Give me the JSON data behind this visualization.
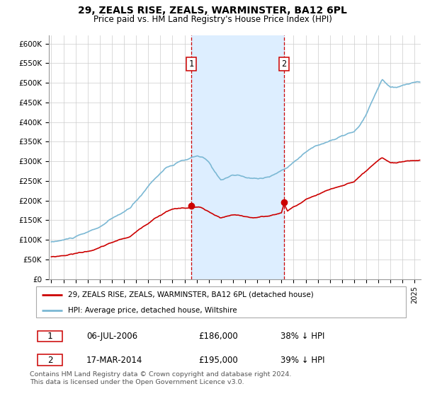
{
  "title": "29, ZEALS RISE, ZEALS, WARMINSTER, BA12 6PL",
  "subtitle": "Price paid vs. HM Land Registry's House Price Index (HPI)",
  "hpi_label": "HPI: Average price, detached house, Wiltshire",
  "property_label": "29, ZEALS RISE, ZEALS, WARMINSTER, BA12 6PL (detached house)",
  "sale1_date": "06-JUL-2006",
  "sale1_price": 186000,
  "sale1_label": "38% ↓ HPI",
  "sale2_date": "17-MAR-2014",
  "sale2_price": 195000,
  "sale2_label": "39% ↓ HPI",
  "footnote": "Contains HM Land Registry data © Crown copyright and database right 2024.\nThis data is licensed under the Open Government Licence v3.0.",
  "hpi_color": "#7bb8d4",
  "property_color": "#cc0000",
  "vline_color": "#cc0000",
  "shade_color": "#ddeeff",
  "sale1_x": 2006.54,
  "sale2_x": 2014.21,
  "xlim_left": 1994.8,
  "xlim_right": 2025.5,
  "ylim": [
    0,
    620000
  ],
  "yticks": [
    0,
    50000,
    100000,
    150000,
    200000,
    250000,
    300000,
    350000,
    400000,
    450000,
    500000,
    550000,
    600000
  ]
}
